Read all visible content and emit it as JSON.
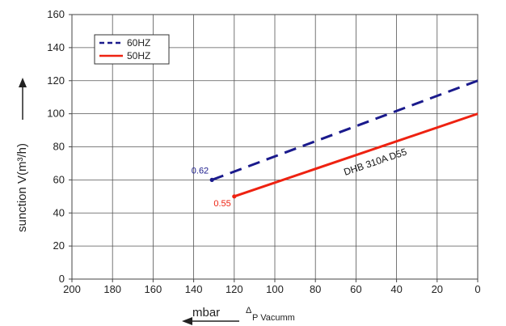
{
  "chart_data": {
    "type": "line",
    "x_axis": {
      "range": [
        200,
        0
      ],
      "ticks": [
        "200",
        "180",
        "160",
        "140",
        "120",
        "100",
        "80",
        "60",
        "40",
        "20",
        "0"
      ],
      "label_unit": "mbar",
      "label_caption": "P Vacumm",
      "label_symbol": "Δ"
    },
    "y_axis": {
      "range": [
        0,
        160
      ],
      "ticks": [
        "0",
        "20",
        "40",
        "60",
        "80",
        "100",
        "120",
        "140",
        "160"
      ],
      "label": "sunction V(m³/h)"
    },
    "grid": true,
    "legend": {
      "position": "top-left",
      "entries": [
        {
          "label": "60HZ",
          "color": "#1a1a8c",
          "dash": true
        },
        {
          "label": "50HZ",
          "color": "#ee2211",
          "dash": false
        }
      ]
    },
    "series": [
      {
        "name": "60HZ",
        "color": "#1a1a8c",
        "points": [
          {
            "x": 131,
            "y": 60
          },
          {
            "x": 0,
            "y": 120
          }
        ]
      },
      {
        "name": "50HZ",
        "color": "#ee2211",
        "points": [
          {
            "x": 120,
            "y": 50
          },
          {
            "x": 0,
            "y": 100
          }
        ]
      }
    ],
    "annotations": [
      {
        "text": "0.62",
        "x": 131,
        "y": 60,
        "color": "#1a1a8c"
      },
      {
        "text": "0.55",
        "x": 120,
        "y": 50,
        "color": "#ee2211"
      }
    ],
    "curve_label": {
      "text": "DHB 310A D55",
      "x": 50,
      "y": 69
    }
  }
}
